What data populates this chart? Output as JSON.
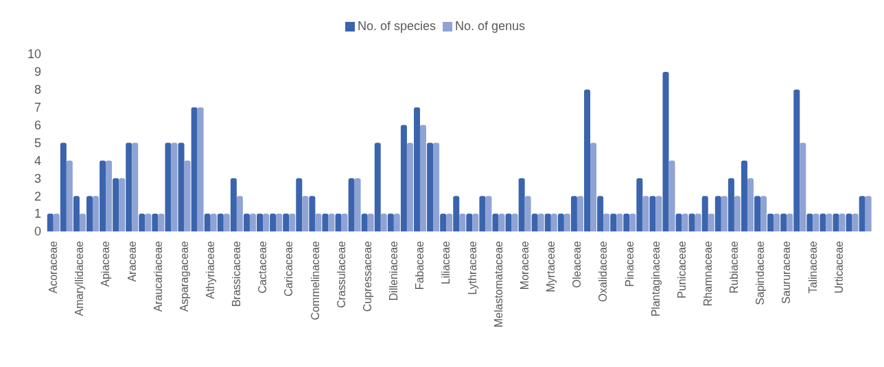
{
  "chart_data": {
    "type": "bar",
    "categories": [
      "Acoraceae",
      null,
      "Amaryllidaceae",
      null,
      "Apiaceae",
      null,
      "Araceae",
      null,
      "Araucariaceae",
      null,
      "Asparagaceae",
      null,
      "Athyriaceae",
      null,
      "Brassicaceae",
      null,
      "Cactaceae",
      null,
      "Caricaceae",
      null,
      "Commelinaceae",
      null,
      "Crassulaceae",
      null,
      "Cupressaceae",
      null,
      "Dilleniaceae",
      null,
      "Fabaceae",
      null,
      "Liliaceae",
      null,
      "Lythraceae",
      null,
      "Melastomataceae",
      null,
      "Moraceae",
      null,
      "Myrtaceae",
      null,
      "Oleaceae",
      null,
      "Oxalidaceae",
      null,
      "Pinaceae",
      null,
      "Plantaginaceae",
      null,
      "Punicaceae",
      null,
      "Rhamnaceae",
      null,
      "Rubiaceae",
      null,
      "Sapindaceae",
      null,
      "Saururaceae",
      null,
      "Talinaceae",
      null,
      "Urticaceae",
      null,
      null
    ],
    "series": [
      {
        "name": "No. of species",
        "color": "#3a64ad",
        "values": [
          1,
          5,
          2,
          2,
          4,
          3,
          5,
          1,
          1,
          5,
          5,
          7,
          1,
          1,
          3,
          1,
          1,
          1,
          1,
          3,
          2,
          1,
          1,
          3,
          1,
          5,
          1,
          6,
          7,
          5,
          1,
          2,
          1,
          2,
          1,
          1,
          3,
          1,
          1,
          1,
          2,
          8,
          2,
          1,
          1,
          3,
          2,
          9,
          1,
          1,
          2,
          2,
          3,
          4,
          2,
          1,
          1,
          8,
          1,
          1,
          1,
          1,
          2
        ]
      },
      {
        "name": "No. of genus",
        "color": "#8fa3d4",
        "values": [
          1,
          4,
          1,
          2,
          4,
          3,
          5,
          1,
          1,
          5,
          4,
          7,
          1,
          1,
          2,
          1,
          1,
          1,
          1,
          2,
          1,
          1,
          1,
          3,
          1,
          1,
          1,
          5,
          6,
          5,
          1,
          1,
          1,
          2,
          1,
          1,
          2,
          1,
          1,
          1,
          2,
          5,
          1,
          1,
          1,
          2,
          2,
          4,
          1,
          1,
          1,
          2,
          2,
          3,
          2,
          1,
          1,
          5,
          1,
          1,
          1,
          1,
          2
        ]
      }
    ],
    "ylim": [
      0,
      10
    ],
    "yticks": [
      0,
      1,
      2,
      3,
      4,
      5,
      6,
      7,
      8,
      9,
      10
    ],
    "legend": "top"
  }
}
